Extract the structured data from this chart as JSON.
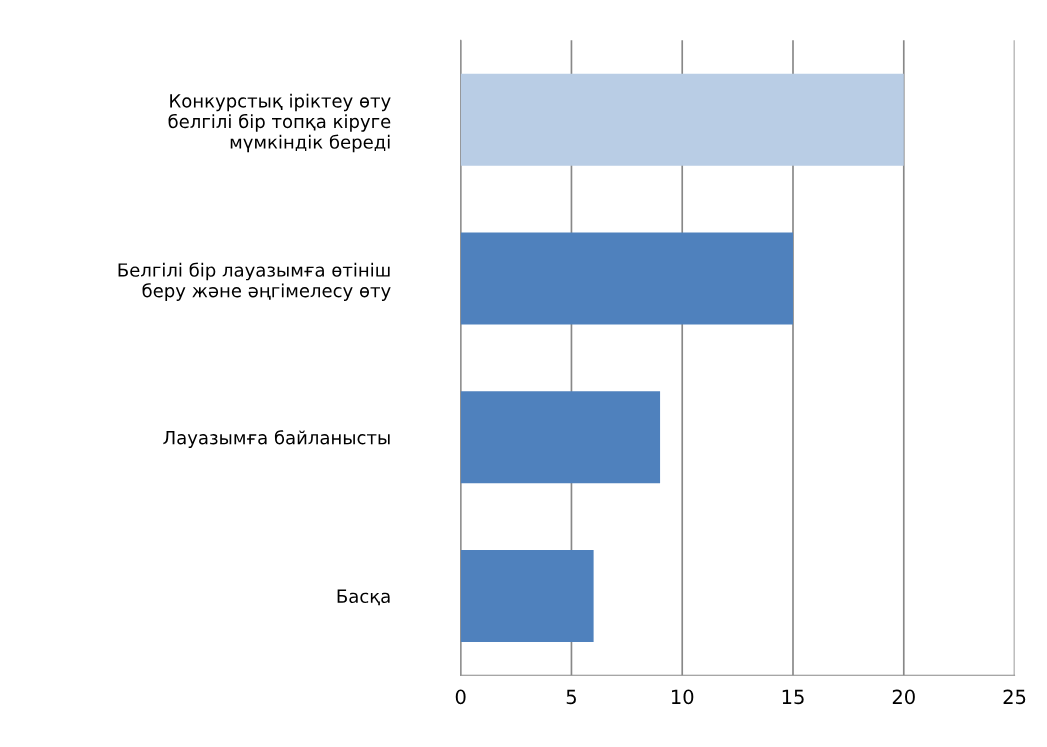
{
  "chart_data": {
    "type": "bar",
    "orientation": "horizontal",
    "categories": [
      "Конкурстық іріктеу өту\nбелгілі бір топқа кіруге\nмүмкіндік береді",
      "Белгілі бір лауазымға өтініш\nберу және әңгімелесу өту",
      "Лауазымға байланысты",
      "Басқа"
    ],
    "values": [
      20,
      15,
      9,
      6
    ],
    "colors": [
      "#b9cde5",
      "#4f81bd",
      "#4f81bd",
      "#4f81bd"
    ],
    "xlim": [
      0,
      25
    ],
    "xticks": [
      0,
      5,
      10,
      15,
      20,
      25
    ],
    "grid": "x",
    "legend": false
  }
}
